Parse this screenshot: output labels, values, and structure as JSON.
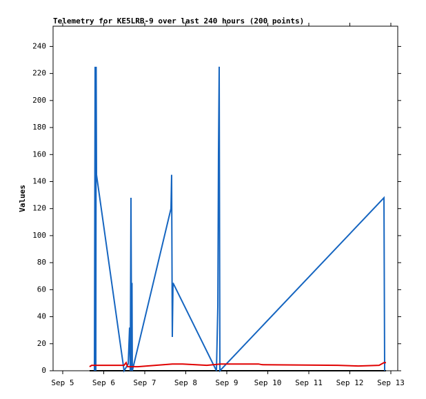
{
  "chart_data": {
    "type": "line",
    "title": "Telemetry for KE5LRB-9 over last 240 hours (200 points)",
    "y_label": "Values",
    "xlim": [
      4.765,
      13.168
    ],
    "xticks": [
      {
        "value": 5,
        "label": "Sep 5"
      },
      {
        "value": 6,
        "label": "Sep 6"
      },
      {
        "value": 7,
        "label": "Sep 7"
      },
      {
        "value": 8,
        "label": "Sep 8"
      },
      {
        "value": 9,
        "label": "Sep 9"
      },
      {
        "value": 10,
        "label": "Sep 10"
      },
      {
        "value": 11,
        "label": "Sep 11"
      },
      {
        "value": 12,
        "label": "Sep 12"
      },
      {
        "value": 13,
        "label": "Sep 13"
      }
    ],
    "ylim": [
      0,
      255
    ],
    "yticks": [
      0,
      20,
      40,
      60,
      80,
      100,
      120,
      140,
      160,
      180,
      200,
      220,
      240
    ],
    "grid": false,
    "series": [
      {
        "color": "#000000",
        "x": [
          5.655,
          12.882
        ],
        "values": [
          0,
          0
        ]
      },
      {
        "color": "#1565c0",
        "x": [
          5.773,
          5.79,
          5.807,
          5.815,
          5.824,
          6.496,
          6.597,
          6.63,
          6.647,
          6.664,
          6.681,
          6.689,
          6.697,
          7.639,
          7.655,
          7.672,
          7.689,
          8.748,
          8.782,
          8.798,
          8.815,
          8.832,
          12.832,
          12.849
        ],
        "values": [
          0,
          225,
          0,
          225,
          145,
          0,
          5,
          32,
          0,
          128,
          0,
          65,
          0,
          120,
          145,
          25,
          65,
          0,
          48,
          160,
          225,
          0,
          128,
          0
        ]
      },
      {
        "color": "#e00000",
        "x": [
          5.655,
          5.706,
          6.496,
          6.546,
          6.58,
          6.832,
          7.672,
          7.924,
          8.513,
          8.849,
          9.773,
          9.857,
          11.706,
          12.21,
          12.714,
          12.832,
          12.882
        ],
        "values": [
          3,
          4,
          4,
          6,
          3,
          3,
          5,
          5,
          4,
          5,
          5,
          4.5,
          4,
          3.5,
          4,
          6,
          6
        ]
      }
    ]
  }
}
